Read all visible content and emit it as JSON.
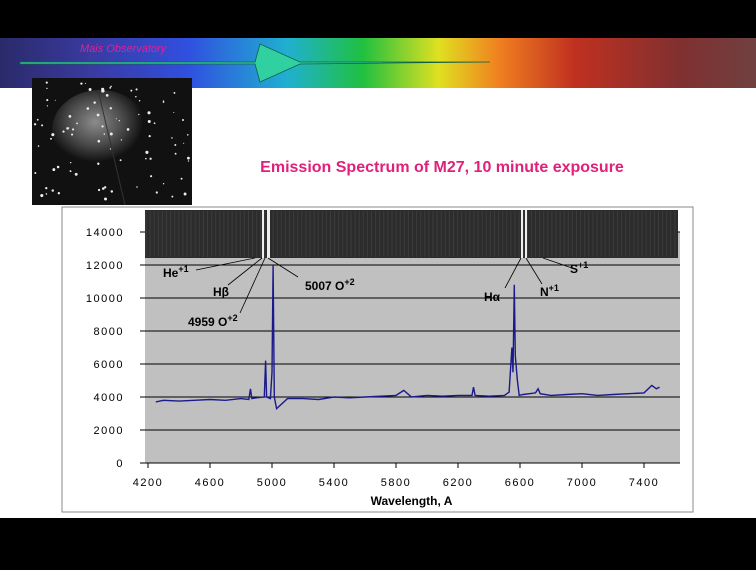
{
  "banner": {
    "text": "Mais Observatory"
  },
  "chart_data": {
    "type": "line",
    "title": "Emission Spectrum of M27, 10 minute exposure",
    "x_label": "Wavelength, A",
    "xlim": [
      4200,
      7600
    ],
    "xticks": [
      4200,
      4600,
      5000,
      5400,
      5800,
      6200,
      6600,
      7000,
      7400
    ],
    "ylim": [
      0,
      14000
    ],
    "yticks": [
      0,
      2000,
      4000,
      6000,
      8000,
      10000,
      12000,
      14000
    ],
    "grid": true,
    "x": [
      4250,
      4300,
      4400,
      4500,
      4600,
      4700,
      4800,
      4850,
      4861,
      4870,
      4900,
      4950,
      4959,
      4965,
      4990,
      5000,
      5007,
      5015,
      5030,
      5100,
      5200,
      5300,
      5400,
      5500,
      5600,
      5700,
      5800,
      5850,
      5900,
      6000,
      6100,
      6200,
      6290,
      6300,
      6310,
      6400,
      6500,
      6530,
      6548,
      6555,
      6563,
      6570,
      6583,
      6595,
      6620,
      6700,
      6717,
      6730,
      6800,
      6900,
      7000,
      7100,
      7200,
      7300,
      7400,
      7450,
      7480,
      7500
    ],
    "series": [
      {
        "color": "#1a1a8c",
        "values": [
          3700,
          3800,
          3750,
          3800,
          3850,
          3800,
          3900,
          3850,
          4500,
          3900,
          3950,
          4000,
          6200,
          4000,
          3900,
          5500,
          12000,
          4000,
          3300,
          3900,
          3900,
          3850,
          4000,
          3950,
          4000,
          4050,
          4100,
          4400,
          4000,
          4100,
          4050,
          4100,
          4100,
          4600,
          4100,
          4050,
          4100,
          4300,
          7000,
          5500,
          10800,
          6500,
          5000,
          4100,
          4150,
          4250,
          4500,
          4200,
          4100,
          4150,
          4200,
          4100,
          4150,
          4200,
          4250,
          4700,
          4500,
          4600
        ]
      }
    ],
    "annotations": [
      {
        "text": "He",
        "sup": "+1"
      },
      {
        "text": "Hβ"
      },
      {
        "text": "4959 O",
        "sup": "+2"
      },
      {
        "text": "5007 O",
        "sup": "+2"
      },
      {
        "text": "Hα"
      },
      {
        "text": "N",
        "sup": "+1"
      },
      {
        "text": "S",
        "sup": "+1"
      }
    ]
  }
}
